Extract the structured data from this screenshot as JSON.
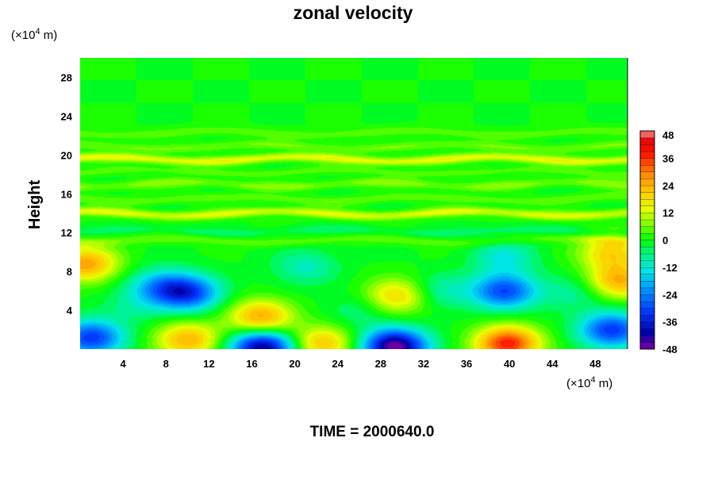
{
  "chart_data": {
    "type": "heatmap",
    "title": "zonal velocity",
    "ylabel": "Height",
    "y_unit_label": "(×10",
    "y_unit_exp": "4",
    "y_unit_tail": " m)",
    "x_unit_label": "(×10",
    "x_unit_exp": "4",
    "x_unit_tail": " m)",
    "xlim": [
      0,
      51
    ],
    "ylim": [
      0,
      30
    ],
    "x_ticks": [
      "4",
      "8",
      "12",
      "16",
      "20",
      "24",
      "28",
      "32",
      "36",
      "40",
      "44",
      "48"
    ],
    "y_ticks": [
      "4",
      "8",
      "12",
      "16",
      "20",
      "24",
      "28"
    ],
    "colorbar": {
      "range": [
        -48,
        48
      ],
      "levels": 32,
      "tick_labels": [
        "48",
        "36",
        "24",
        "12",
        "0",
        "-12",
        "-24",
        "-36",
        "-48"
      ]
    },
    "bands": [
      {
        "y": 22.3,
        "amp": 5
      },
      {
        "y": 20.9,
        "amp": 6
      },
      {
        "y": 19.6,
        "amp": 14
      },
      {
        "y": 18.3,
        "amp": 4
      },
      {
        "y": 17.0,
        "amp": 7
      },
      {
        "y": 15.5,
        "amp": 5
      },
      {
        "y": 14.0,
        "amp": 13
      },
      {
        "y": 12.2,
        "amp": -4
      },
      {
        "y": 11.2,
        "amp": 5
      }
    ],
    "blobs": [
      {
        "x": 0.5,
        "y": 8.8,
        "value": 26
      },
      {
        "x": 10.0,
        "y": 5.8,
        "value": -30
      },
      {
        "x": 7.5,
        "y": 6.5,
        "value": -18
      },
      {
        "x": 1.0,
        "y": 1.2,
        "value": -32
      },
      {
        "x": 10.0,
        "y": 1.0,
        "value": 24
      },
      {
        "x": 16.8,
        "y": 3.3,
        "value": 26
      },
      {
        "x": 17.0,
        "y": 0.2,
        "value": -44
      },
      {
        "x": 22.5,
        "y": 0.6,
        "value": 22
      },
      {
        "x": 21.0,
        "y": 8.5,
        "value": -10
      },
      {
        "x": 29.3,
        "y": 0.3,
        "value": -48
      },
      {
        "x": 29.5,
        "y": 5.5,
        "value": 20
      },
      {
        "x": 33.5,
        "y": 6.0,
        "value": -10
      },
      {
        "x": 39.8,
        "y": 0.6,
        "value": 38
      },
      {
        "x": 39.5,
        "y": 6.0,
        "value": -30
      },
      {
        "x": 39.5,
        "y": 9.5,
        "value": -12
      },
      {
        "x": 46.0,
        "y": 5.8,
        "value": -8
      },
      {
        "x": 49.5,
        "y": 2.0,
        "value": -32
      },
      {
        "x": 50.2,
        "y": 7.0,
        "value": 24
      },
      {
        "x": 49.5,
        "y": 10.0,
        "value": 20
      },
      {
        "x": 5.0,
        "y": 4.5,
        "value": -6
      },
      {
        "x": 26.0,
        "y": 4.0,
        "value": -6
      }
    ]
  },
  "footer": {
    "time_label": "TIME = 2000640.0"
  }
}
